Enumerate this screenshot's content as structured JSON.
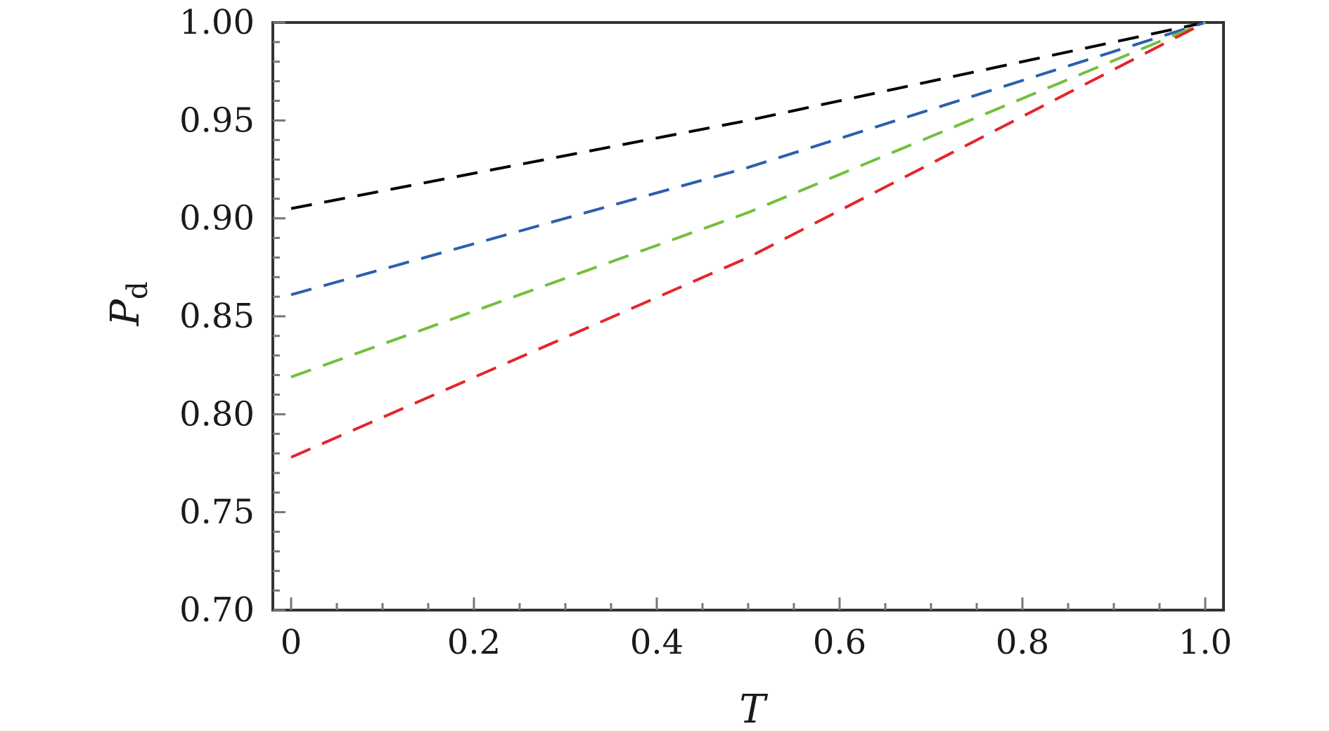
{
  "chart_data": {
    "type": "line",
    "title": "",
    "xlabel": "T",
    "ylabel": {
      "main": "P",
      "sub": "d"
    },
    "xlim": [
      -0.02,
      1.02
    ],
    "ylim": [
      0.7,
      1.0
    ],
    "xticks": [
      {
        "value": 0,
        "label": "0"
      },
      {
        "value": 0.2,
        "label": "0.2"
      },
      {
        "value": 0.4,
        "label": "0.4"
      },
      {
        "value": 0.6,
        "label": "0.6"
      },
      {
        "value": 0.8,
        "label": "0.8"
      },
      {
        "value": 1.0,
        "label": "1.0"
      }
    ],
    "yticks": [
      {
        "value": 0.7,
        "label": "0.70"
      },
      {
        "value": 0.75,
        "label": "0.75"
      },
      {
        "value": 0.8,
        "label": "0.80"
      },
      {
        "value": 0.85,
        "label": "0.85"
      },
      {
        "value": 0.9,
        "label": "0.90"
      },
      {
        "value": 0.95,
        "label": "0.95"
      },
      {
        "value": 1.0,
        "label": "1.00"
      }
    ],
    "x_minor_step": 0.05,
    "y_minor_step": 0.01,
    "grid": false,
    "legend": "none",
    "line_style": "dashed",
    "series": [
      {
        "color": "#000000",
        "x": [
          0,
          0.5,
          1.0
        ],
        "y": [
          0.905,
          0.95,
          1.0
        ]
      },
      {
        "color": "#2b5fae",
        "x": [
          0,
          0.5,
          1.0
        ],
        "y": [
          0.861,
          0.926,
          1.0
        ]
      },
      {
        "color": "#72bf3f",
        "x": [
          0,
          0.5,
          1.0
        ],
        "y": [
          0.819,
          0.903,
          1.0
        ]
      },
      {
        "color": "#e5252a",
        "x": [
          0,
          0.5,
          1.0
        ],
        "y": [
          0.778,
          0.88,
          1.0
        ]
      }
    ]
  }
}
